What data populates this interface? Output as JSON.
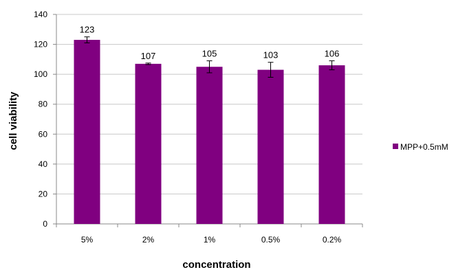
{
  "chart_data": {
    "type": "bar",
    "categories": [
      "5%",
      "2%",
      "1%",
      "0.5%",
      "0.2%"
    ],
    "series": [
      {
        "name": "MPP+0.5mM",
        "values": [
          123,
          107,
          105,
          103,
          106
        ],
        "errors": [
          2,
          0.5,
          4,
          5,
          3
        ],
        "data_labels": [
          "123",
          "107",
          "105",
          "103",
          "106"
        ]
      }
    ],
    "xlabel": "concentration",
    "ylabel": "cell viability",
    "ylim": [
      0,
      140
    ],
    "yticks": [
      "0",
      "20",
      "40",
      "60",
      "80",
      "100",
      "120",
      "140"
    ],
    "grid": true,
    "legend_position": "right",
    "colors": {
      "bar": "#800080",
      "grid": "#c8c8c8",
      "axis": "#888888"
    }
  }
}
